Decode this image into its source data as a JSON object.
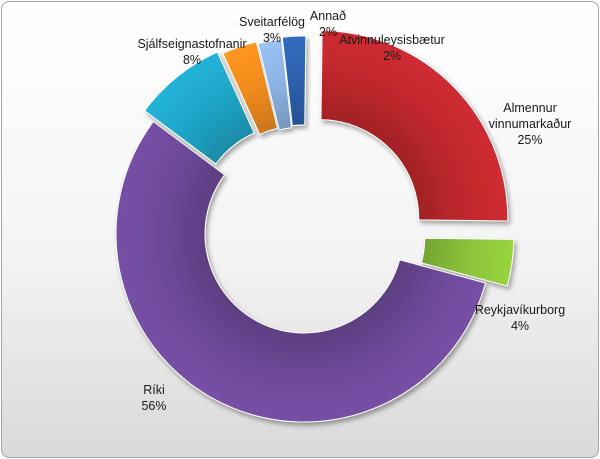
{
  "chart_data": {
    "type": "pie",
    "variant": "doughnut-exploded",
    "title": "",
    "slices": [
      {
        "name": "Almennur vinnumarkaður",
        "label_lines": [
          "Almennur",
          "vinnumarkaður"
        ],
        "value": 25,
        "value_label": "25%",
        "color": "#c0282d"
      },
      {
        "name": "Reykjavíkurborg",
        "label_lines": [
          "Reykjavíkurborg"
        ],
        "value": 4,
        "value_label": "4%",
        "color": "#8cc43a"
      },
      {
        "name": "Ríki",
        "label_lines": [
          "Ríki"
        ],
        "value": 56,
        "value_label": "56%",
        "color": "#6e4a9a"
      },
      {
        "name": "Sjálfseignastofnanir",
        "label_lines": [
          "Sjálfseignastofnanir"
        ],
        "value": 8,
        "value_label": "8%",
        "color": "#1fa6c8"
      },
      {
        "name": "Sveitarfélög",
        "label_lines": [
          "Sveitarfélög"
        ],
        "value": 3,
        "value_label": "3%",
        "color": "#f28c1e"
      },
      {
        "name": "Annað",
        "label_lines": [
          "Annað"
        ],
        "value": 2,
        "value_label": "2%",
        "color": "#8eb4e3"
      },
      {
        "name": "Atvinnuleysisbætur",
        "label_lines": [
          "Atvinnuleysisbætur"
        ],
        "value": 2,
        "value_label": "2%",
        "color": "#2e62b0"
      }
    ],
    "legend": "none",
    "labels": "outside, category name and percentage"
  }
}
